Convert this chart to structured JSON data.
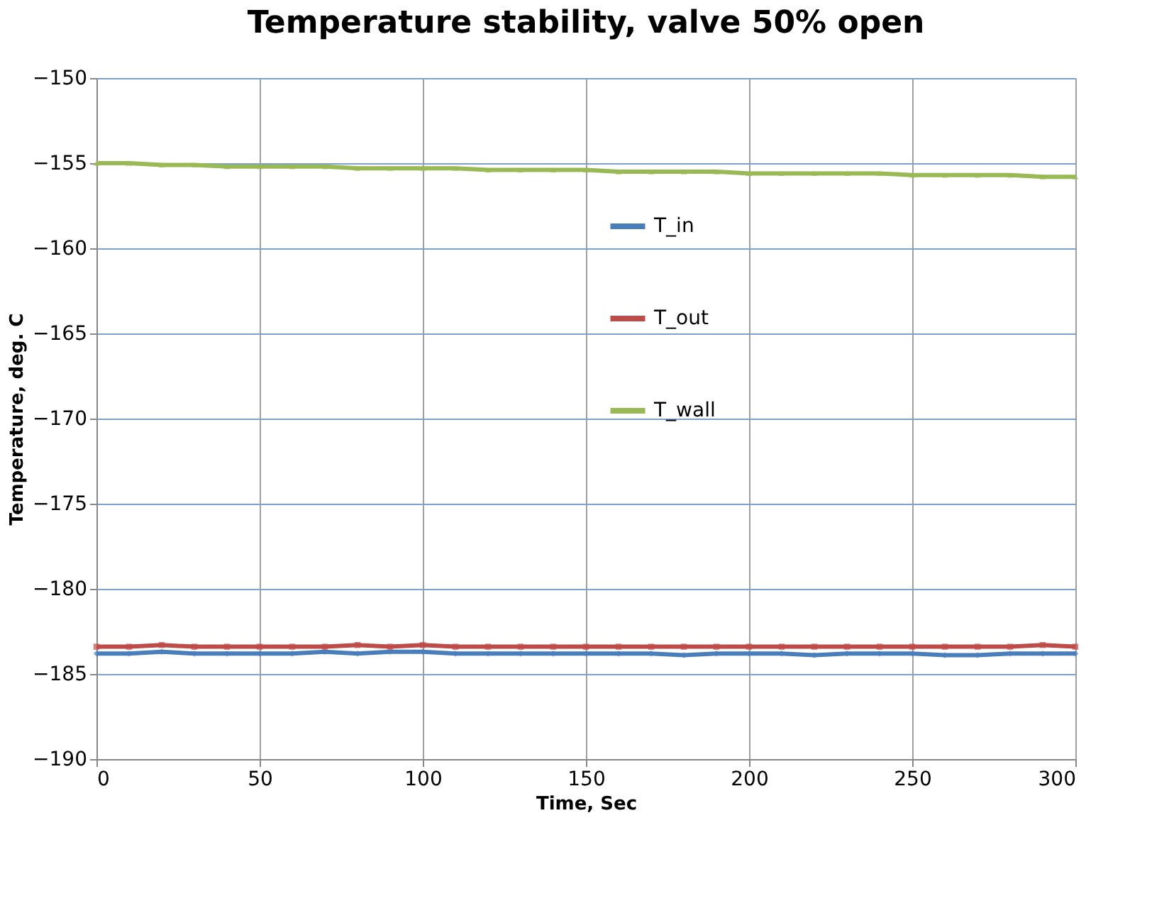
{
  "chart_data": {
    "type": "line",
    "title": "Temperature stability, valve 50% open",
    "xlabel": "Time, Sec",
    "ylabel": "Temperature, deg. C",
    "x": [
      0,
      10,
      20,
      30,
      40,
      50,
      60,
      70,
      80,
      90,
      100,
      110,
      120,
      130,
      140,
      150,
      160,
      170,
      180,
      190,
      200,
      210,
      220,
      230,
      240,
      250,
      260,
      270,
      280,
      290,
      300
    ],
    "series": [
      {
        "name": "T_in",
        "color": "#4a7ebb",
        "marker": "diamond",
        "values": [
          -183.8,
          -183.8,
          -183.7,
          -183.8,
          -183.8,
          -183.8,
          -183.8,
          -183.7,
          -183.8,
          -183.7,
          -183.7,
          -183.8,
          -183.8,
          -183.8,
          -183.8,
          -183.8,
          -183.8,
          -183.8,
          -183.9,
          -183.8,
          -183.8,
          -183.8,
          -183.9,
          -183.8,
          -183.8,
          -183.8,
          -183.9,
          -183.9,
          -183.8,
          -183.8,
          -183.8
        ]
      },
      {
        "name": "T_out",
        "color": "#be4b48",
        "marker": "square",
        "values": [
          -183.4,
          -183.4,
          -183.3,
          -183.4,
          -183.4,
          -183.4,
          -183.4,
          -183.4,
          -183.3,
          -183.4,
          -183.3,
          -183.4,
          -183.4,
          -183.4,
          -183.4,
          -183.4,
          -183.4,
          -183.4,
          -183.4,
          -183.4,
          -183.4,
          -183.4,
          -183.4,
          -183.4,
          -183.4,
          -183.4,
          -183.4,
          -183.4,
          -183.4,
          -183.3,
          -183.4
        ]
      },
      {
        "name": "T_wall",
        "color": "#98b954",
        "marker": "triangle",
        "values": [
          -155.0,
          -155.0,
          -155.1,
          -155.1,
          -155.2,
          -155.2,
          -155.2,
          -155.2,
          -155.3,
          -155.3,
          -155.3,
          -155.3,
          -155.4,
          -155.4,
          -155.4,
          -155.4,
          -155.5,
          -155.5,
          -155.5,
          -155.5,
          -155.6,
          -155.6,
          -155.6,
          -155.6,
          -155.6,
          -155.7,
          -155.7,
          -155.7,
          -155.7,
          -155.8,
          -155.8
        ]
      }
    ],
    "xlim": [
      0,
      300
    ],
    "xticks": [
      0,
      50,
      100,
      150,
      200,
      250,
      300
    ],
    "ylim": [
      -190,
      -150
    ],
    "yticks": [
      -190,
      -185,
      -180,
      -175,
      -170,
      -165,
      -160,
      -155,
      -150
    ],
    "grid": true,
    "legend": "top",
    "line_style": "solid"
  }
}
